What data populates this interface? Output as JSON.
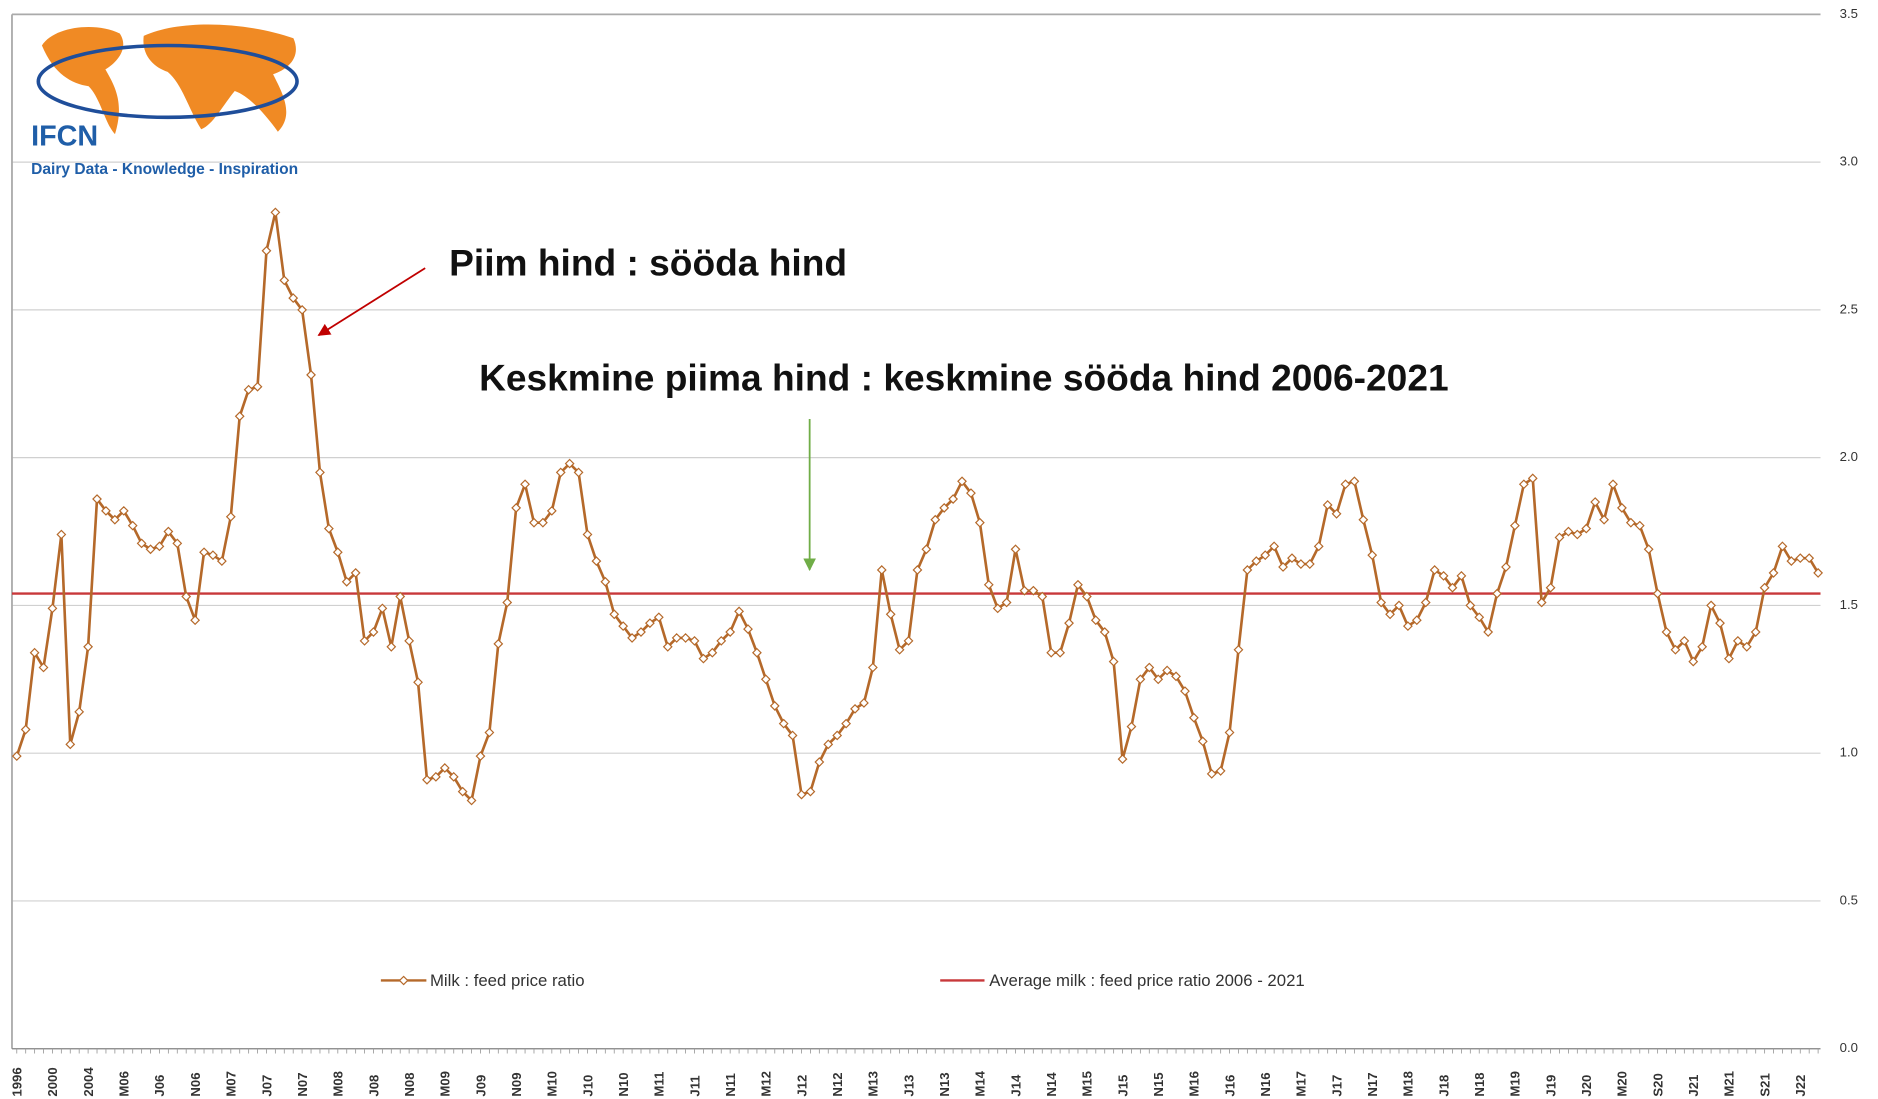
{
  "chart_data": {
    "type": "line",
    "logo": {
      "name": "IFCN",
      "tagline": "Dairy Data - Knowledge - Inspiration"
    },
    "annotations": [
      "Piim hind : sööda hind",
      "Keskmine piima hind : keskmine sööda hind 2006-2021"
    ],
    "categories": [
      "1996",
      null,
      null,
      null,
      "2000",
      null,
      null,
      null,
      "2004",
      null,
      null,
      null,
      "M06",
      null,
      null,
      null,
      "J06",
      null,
      null,
      null,
      "N06",
      null,
      null,
      null,
      "M07",
      null,
      null,
      null,
      "J07",
      null,
      null,
      null,
      "N07",
      null,
      null,
      null,
      "M08",
      null,
      null,
      null,
      "J08",
      null,
      null,
      null,
      "N08",
      null,
      null,
      null,
      "M09",
      null,
      null,
      null,
      "J09",
      null,
      null,
      null,
      "N09",
      null,
      null,
      null,
      "M10",
      null,
      null,
      null,
      "J10",
      null,
      null,
      null,
      "N10",
      null,
      null,
      null,
      "M11",
      null,
      null,
      null,
      "J11",
      null,
      null,
      null,
      "N11",
      null,
      null,
      null,
      "M12",
      null,
      null,
      null,
      "J12",
      null,
      null,
      null,
      "N12",
      null,
      null,
      null,
      "M13",
      null,
      null,
      null,
      "J13",
      null,
      null,
      null,
      "N13",
      null,
      null,
      null,
      "M14",
      null,
      null,
      null,
      "J14",
      null,
      null,
      null,
      "N14",
      null,
      null,
      null,
      "M15",
      null,
      null,
      null,
      "J15",
      null,
      null,
      null,
      "N15",
      null,
      null,
      null,
      "M16",
      null,
      null,
      null,
      "J16",
      null,
      null,
      null,
      "N16",
      null,
      null,
      null,
      "M17",
      null,
      null,
      null,
      "J17",
      null,
      null,
      null,
      "N17",
      null,
      null,
      null,
      "M18",
      null,
      null,
      null,
      "J18",
      null,
      null,
      null,
      "N18",
      null,
      null,
      null,
      "M19",
      null,
      null,
      null,
      "J19",
      null,
      null,
      null,
      "J20",
      null,
      null,
      null,
      "M20",
      null,
      null,
      null,
      "S20",
      null,
      null,
      null,
      "J21",
      null,
      null,
      null,
      "M21",
      null,
      null,
      null,
      "S21",
      null,
      null,
      null,
      "J22",
      null,
      null
    ],
    "series": [
      {
        "name": "Milk : feed price ratio",
        "color": "#b5692a",
        "values": [
          0.99,
          1.08,
          1.34,
          1.29,
          1.49,
          1.74,
          1.03,
          1.14,
          1.36,
          1.86,
          1.82,
          1.79,
          1.82,
          1.77,
          1.71,
          1.69,
          1.7,
          1.75,
          1.71,
          1.53,
          1.45,
          1.68,
          1.67,
          1.65,
          1.8,
          2.14,
          2.23,
          2.24,
          2.7,
          2.83,
          2.6,
          2.54,
          2.5,
          2.28,
          1.95,
          1.76,
          1.68,
          1.58,
          1.61,
          1.38,
          1.41,
          1.49,
          1.36,
          1.53,
          1.38,
          1.24,
          0.91,
          0.92,
          0.95,
          0.92,
          0.87,
          0.84,
          0.99,
          1.07,
          1.37,
          1.51,
          1.83,
          1.91,
          1.78,
          1.78,
          1.82,
          1.95,
          1.98,
          1.95,
          1.74,
          1.65,
          1.58,
          1.47,
          1.43,
          1.39,
          1.41,
          1.44,
          1.46,
          1.36,
          1.39,
          1.39,
          1.38,
          1.32,
          1.34,
          1.38,
          1.41,
          1.48,
          1.42,
          1.34,
          1.25,
          1.16,
          1.1,
          1.06,
          0.86,
          0.87,
          0.97,
          1.03,
          1.06,
          1.1,
          1.15,
          1.17,
          1.29,
          1.62,
          1.47,
          1.35,
          1.38,
          1.62,
          1.69,
          1.79,
          1.83,
          1.86,
          1.92,
          1.88,
          1.78,
          1.57,
          1.49,
          1.51,
          1.69,
          1.55,
          1.55,
          1.53,
          1.34,
          1.34,
          1.44,
          1.57,
          1.53,
          1.45,
          1.41,
          1.31,
          0.98,
          1.09,
          1.25,
          1.29,
          1.25,
          1.28,
          1.26,
          1.21,
          1.12,
          1.04,
          0.93,
          0.94,
          1.07,
          1.35,
          1.62,
          1.65,
          1.67,
          1.7,
          1.63,
          1.66,
          1.64,
          1.64,
          1.7,
          1.84,
          1.81,
          1.91,
          1.92,
          1.79,
          1.67,
          1.51,
          1.47,
          1.5,
          1.43,
          1.45,
          1.51,
          1.62,
          1.6,
          1.56,
          1.6,
          1.5,
          1.46,
          1.41,
          1.54,
          1.63,
          1.77,
          1.91,
          1.93,
          1.51,
          1.56,
          1.73,
          1.75,
          1.74,
          1.76,
          1.85,
          1.79,
          1.91,
          1.83,
          1.78,
          1.77,
          1.69,
          1.54,
          1.41,
          1.35,
          1.38,
          1.31,
          1.36,
          1.5,
          1.44,
          1.32,
          1.38,
          1.36,
          1.41,
          1.56,
          1.61,
          1.7,
          1.65,
          1.66,
          1.66,
          1.61
        ]
      }
    ],
    "reference_line": {
      "name": "Average milk : feed price ratio 2006 - 2021",
      "color": "#c8383a",
      "value": 1.54
    },
    "ylim": [
      0,
      3.5
    ],
    "yticks": [
      {
        "value": 0,
        "label": "0.0"
      },
      0.5,
      {
        "value": 1,
        "label": "1.0"
      },
      1.5,
      {
        "value": 2,
        "label": "2.0"
      },
      2.5,
      {
        "value": 3,
        "label": "3.0"
      },
      3.5
    ],
    "grid": true
  }
}
